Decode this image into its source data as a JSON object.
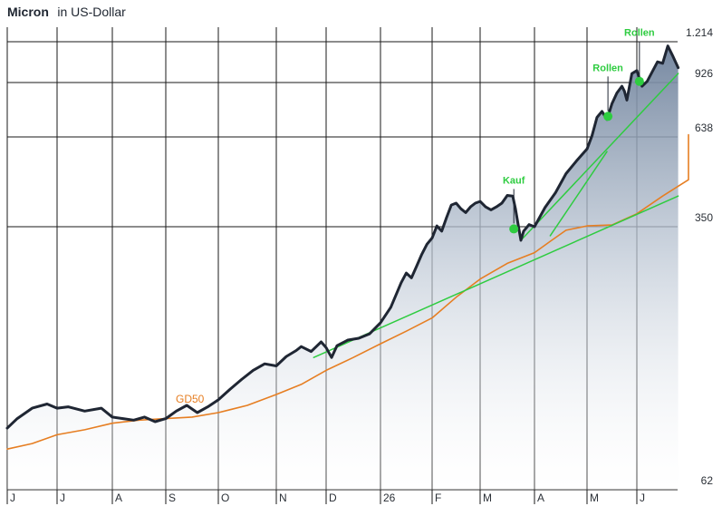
{
  "chart_data": {
    "type": "line",
    "title": "Micron",
    "title_suffix": "in US-Dollar",
    "y_scale": "log",
    "ylim": [
      62,
      1214
    ],
    "y_ticks": [
      {
        "label": "1.214",
        "value": 1214
      },
      {
        "label": "926",
        "value": 926
      },
      {
        "label": "638",
        "value": 638
      },
      {
        "label": "350",
        "value": 350
      },
      {
        "label": "62",
        "value": 62
      }
    ],
    "x_ticks": [
      "J",
      "J",
      "A",
      "S",
      "O",
      "N",
      "D",
      "26",
      "F",
      "M",
      "A",
      "M",
      "J"
    ],
    "grid": true,
    "colors": {
      "price": "#1f2633",
      "gd50": "#e67e22",
      "trend": "#2ecc40",
      "area_top": "#6f829c",
      "area_bottom": "#ffffff",
      "grid": "#1a1a1a"
    },
    "series": [
      {
        "name": "",
        "role": "price",
        "points": [
          [
            0.0,
            93
          ],
          [
            0.2,
            99
          ],
          [
            0.5,
            106
          ],
          [
            0.8,
            109
          ],
          [
            1.0,
            106
          ],
          [
            1.2,
            107
          ],
          [
            1.5,
            104
          ],
          [
            1.8,
            106
          ],
          [
            2.0,
            100
          ],
          [
            2.2,
            99
          ],
          [
            2.4,
            98
          ],
          [
            2.6,
            100
          ],
          [
            2.8,
            97
          ],
          [
            3.0,
            99
          ],
          [
            3.2,
            104
          ],
          [
            3.4,
            108
          ],
          [
            3.6,
            103
          ],
          [
            3.8,
            107
          ],
          [
            4.0,
            112
          ],
          [
            4.2,
            120
          ],
          [
            4.4,
            128
          ],
          [
            4.6,
            136
          ],
          [
            4.8,
            142
          ],
          [
            5.0,
            140
          ],
          [
            5.2,
            149
          ],
          [
            5.4,
            155
          ],
          [
            5.5,
            159
          ],
          [
            5.7,
            154
          ],
          [
            5.9,
            164
          ],
          [
            6.0,
            158
          ],
          [
            6.1,
            148
          ],
          [
            6.2,
            160
          ],
          [
            6.4,
            166
          ],
          [
            6.6,
            168
          ],
          [
            6.8,
            173
          ],
          [
            7.0,
            186
          ],
          [
            7.2,
            206
          ],
          [
            7.4,
            242
          ],
          [
            7.5,
            258
          ],
          [
            7.6,
            250
          ],
          [
            7.7,
            270
          ],
          [
            7.8,
            292
          ],
          [
            7.9,
            312
          ],
          [
            8.0,
            325
          ],
          [
            8.1,
            352
          ],
          [
            8.2,
            340
          ],
          [
            8.3,
            372
          ],
          [
            8.4,
            405
          ],
          [
            8.5,
            410
          ],
          [
            8.6,
            395
          ],
          [
            8.7,
            385
          ],
          [
            8.8,
            400
          ],
          [
            8.9,
            410
          ],
          [
            9.0,
            415
          ],
          [
            9.1,
            400
          ],
          [
            9.2,
            392
          ],
          [
            9.3,
            400
          ],
          [
            9.4,
            410
          ],
          [
            9.5,
            432
          ],
          [
            9.6,
            430
          ],
          [
            9.65,
            395
          ],
          [
            9.7,
            355
          ],
          [
            9.75,
            320
          ],
          [
            9.8,
            340
          ],
          [
            9.9,
            355
          ],
          [
            10.0,
            350
          ],
          [
            10.2,
            398
          ],
          [
            10.4,
            440
          ],
          [
            10.6,
            500
          ],
          [
            10.8,
            545
          ],
          [
            11.0,
            590
          ],
          [
            11.1,
            645
          ],
          [
            11.2,
            730
          ],
          [
            11.3,
            760
          ],
          [
            11.4,
            720
          ],
          [
            11.5,
            800
          ],
          [
            11.6,
            860
          ],
          [
            11.7,
            900
          ],
          [
            11.75,
            870
          ],
          [
            11.8,
            820
          ],
          [
            11.9,
            980
          ],
          [
            12.0,
            1000
          ],
          [
            12.1,
            900
          ],
          [
            12.2,
            930
          ],
          [
            12.4,
            1060
          ],
          [
            12.5,
            1050
          ],
          [
            12.6,
            1180
          ],
          [
            12.7,
            1100
          ],
          [
            12.8,
            1020
          ]
        ]
      },
      {
        "name": "GD50",
        "role": "moving_average",
        "points": [
          [
            0.0,
            81
          ],
          [
            0.5,
            84
          ],
          [
            1.0,
            89
          ],
          [
            1.5,
            92
          ],
          [
            2.0,
            96
          ],
          [
            2.5,
            98
          ],
          [
            3.0,
            99
          ],
          [
            3.5,
            100
          ],
          [
            4.0,
            103
          ],
          [
            4.5,
            108
          ],
          [
            5.0,
            116
          ],
          [
            5.5,
            124
          ],
          [
            6.0,
            136
          ],
          [
            6.5,
            148
          ],
          [
            7.0,
            162
          ],
          [
            7.5,
            176
          ],
          [
            8.0,
            192
          ],
          [
            8.5,
            220
          ],
          [
            9.0,
            248
          ],
          [
            9.5,
            275
          ],
          [
            10.0,
            295
          ],
          [
            10.3,
            318
          ],
          [
            10.6,
            342
          ],
          [
            11.0,
            352
          ],
          [
            11.5,
            354
          ],
          [
            12.0,
            382
          ],
          [
            12.5,
            430
          ],
          [
            13.0,
            480
          ],
          [
            13.5,
            520
          ],
          [
            14.0,
            560
          ],
          [
            14.5,
            610
          ],
          [
            14.9,
            650
          ]
        ]
      },
      {
        "name": "",
        "role": "trend_long",
        "points": [
          [
            5.75,
            148
          ],
          [
            12.8,
            430
          ]
        ]
      },
      {
        "name": "",
        "role": "trend_mid",
        "points": [
          [
            9.75,
            320
          ],
          [
            12.8,
            980
          ]
        ]
      },
      {
        "name": "",
        "role": "trend_short",
        "points": [
          [
            10.3,
            330
          ],
          [
            11.4,
            580
          ]
        ]
      }
    ],
    "annotations": [
      {
        "label": "Kauf",
        "x": 9.62,
        "y": 345
      },
      {
        "label": "Rollen",
        "x": 11.42,
        "y": 735
      },
      {
        "label": "Rollen",
        "x": 12.05,
        "y": 930
      }
    ],
    "moving_average_label": "GD50"
  }
}
